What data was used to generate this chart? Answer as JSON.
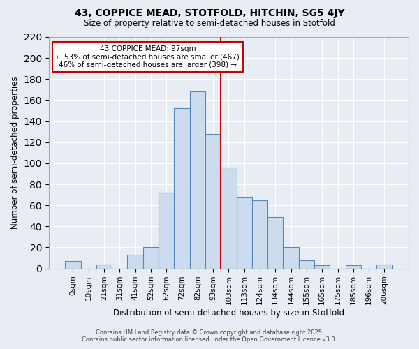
{
  "title": "43, COPPICE MEAD, STOTFOLD, HITCHIN, SG5 4JY",
  "subtitle": "Size of property relative to semi-detached houses in Stotfold",
  "xlabel": "Distribution of semi-detached houses by size in Stotfold",
  "ylabel": "Number of semi-detached properties",
  "bin_labels": [
    "0sqm",
    "10sqm",
    "21sqm",
    "31sqm",
    "41sqm",
    "52sqm",
    "62sqm",
    "72sqm",
    "82sqm",
    "93sqm",
    "103sqm",
    "113sqm",
    "124sqm",
    "134sqm",
    "144sqm",
    "155sqm",
    "165sqm",
    "175sqm",
    "185sqm",
    "196sqm",
    "206sqm"
  ],
  "bar_heights": [
    7,
    0,
    4,
    0,
    13,
    20,
    72,
    152,
    168,
    128,
    96,
    68,
    65,
    49,
    20,
    8,
    3,
    0,
    3,
    0,
    4
  ],
  "bar_color": "#ccdcee",
  "bar_edge_color": "#5588bb",
  "background_color": "#e8edf4",
  "grid_color": "#ffffff",
  "red_line_after_bin": 9,
  "annotation_title": "43 COPPICE MEAD: 97sqm",
  "annotation_line1": "← 53% of semi-detached houses are smaller (467)",
  "annotation_line2": "46% of semi-detached houses are larger (398) →",
  "annotation_box_facecolor": "#ffffff",
  "annotation_box_edgecolor": "#cc0000",
  "red_line_color": "#cc0000",
  "ylim": [
    0,
    220
  ],
  "yticks": [
    0,
    20,
    40,
    60,
    80,
    100,
    120,
    140,
    160,
    180,
    200,
    220
  ],
  "footer1": "Contains HM Land Registry data © Crown copyright and database right 2025.",
  "footer2": "Contains public sector information licensed under the Open Government Licence v3.0."
}
